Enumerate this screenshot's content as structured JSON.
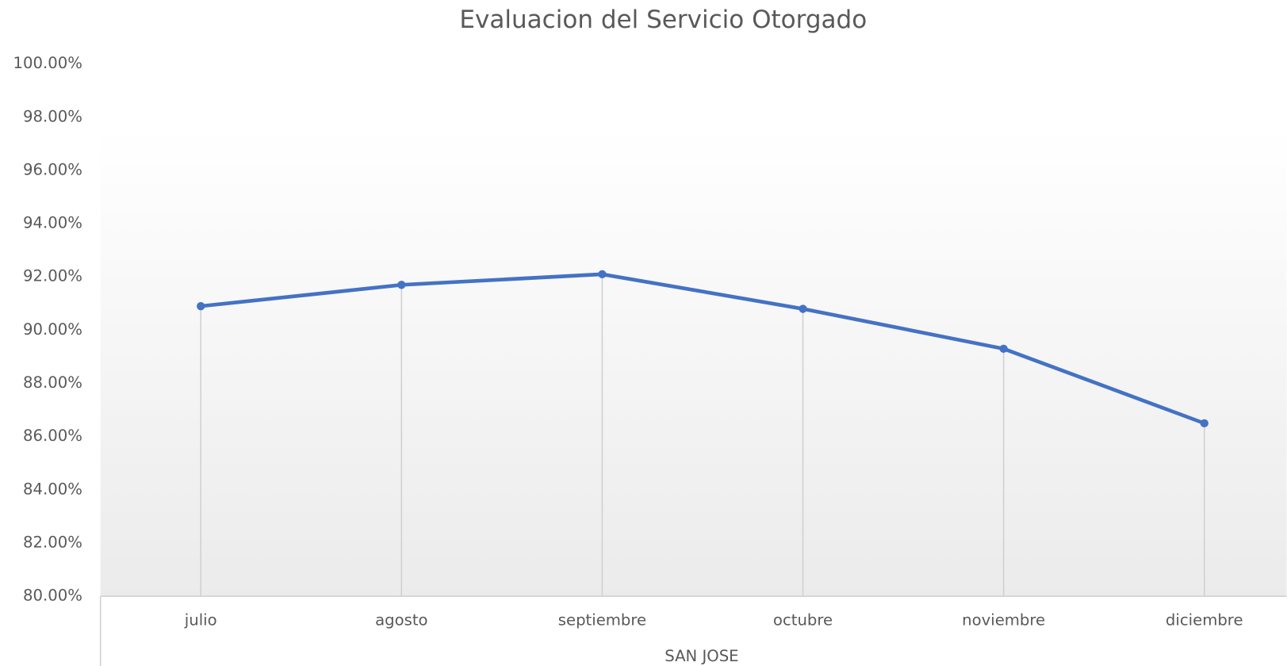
{
  "chart_data": {
    "type": "line",
    "title": "Evaluacion  del Servicio  Otorgado",
    "x_label": "SAN JOSE",
    "categories": [
      "julio",
      "agosto",
      "septiembre",
      "octubre",
      "noviembre",
      "diciembre"
    ],
    "values": [
      90.9,
      91.7,
      92.1,
      90.8,
      89.3,
      86.5
    ],
    "color": "#4472c4",
    "drop_lines": true,
    "ylim": [
      80,
      100
    ],
    "yticks": [
      {
        "value": 80,
        "label": "80.00%"
      },
      {
        "value": 82,
        "label": "82.00%"
      },
      {
        "value": 84,
        "label": "84.00%"
      },
      {
        "value": 86,
        "label": "86.00%"
      },
      {
        "value": 88,
        "label": "88.00%"
      },
      {
        "value": 90,
        "label": "90.00%"
      },
      {
        "value": 92,
        "label": "92.00%"
      },
      {
        "value": 94,
        "label": "94.00%"
      },
      {
        "value": 96,
        "label": "96.00%"
      },
      {
        "value": 98,
        "label": "98.00%"
      },
      {
        "value": 100,
        "label": "100.00%"
      }
    ]
  }
}
